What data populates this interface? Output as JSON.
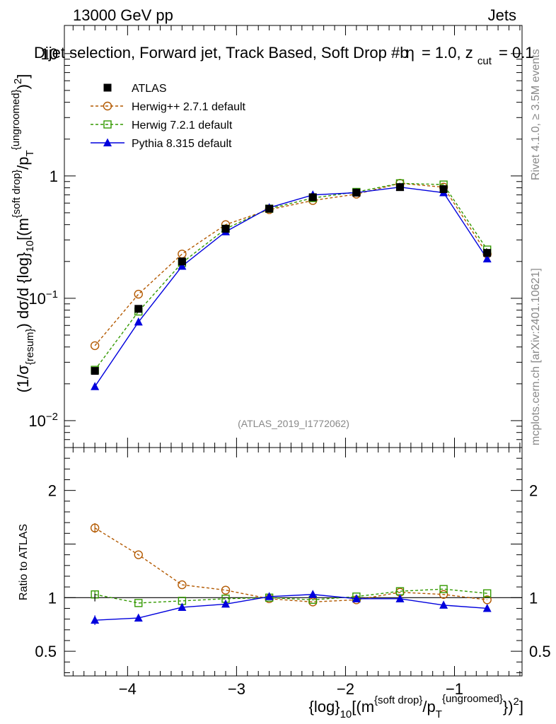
{
  "header": {
    "energy": "13000 GeV pp",
    "category": "Jets",
    "title": "Dijet selection, Forward jet, Track Based, Soft Drop #b",
    "title_params": "= 1.0, z",
    "title_params_sub": "cut",
    "title_params_tail": "= 0.1",
    "title_beta": "η"
  },
  "side_text": {
    "rivet": "Rivet 4.1.0, ≥ 3.5M events",
    "mcplots": "mcplots.cern.ch [arXiv:2401.10621]"
  },
  "watermark": "(ATLAS_2019_I1772062)",
  "axes": {
    "y_main_label": "(1/σ{resum}) dσ/d {log}10[(m{soft drop}/pT{ungroomed})2]",
    "y_main_parts": {
      "a": "(1/σ",
      "a_sub": "{resum}",
      "b": ") dσ/d {log}",
      "b_sub": "10",
      "c": "[(m",
      "c_sup": "{soft drop}",
      "d": "/p",
      "d_sub": "T",
      "d_sup": "{ungroomed}",
      "e": ")",
      "e_sup": "2",
      "f": "]"
    },
    "y_ratio_label": "Ratio to ATLAS",
    "x_label_parts": {
      "a": "{log}",
      "a_sub": "10",
      "b": "[(m",
      "b_sup": "{soft drop}",
      "c": "/p",
      "c_sub": "T",
      "c_sup": "{ungroomed}",
      "d": "})",
      "d_sup": "2",
      "e": "]"
    },
    "main_y_ticks": [
      {
        "value": 10,
        "label": "10"
      },
      {
        "value": 1,
        "label": "1"
      },
      {
        "value": 0.1,
        "label": "10",
        "exp": "−1"
      },
      {
        "value": 0.01,
        "label": "10",
        "exp": "−2"
      }
    ],
    "ratio_y_ticks": [
      {
        "value": 2,
        "label": "2"
      },
      {
        "value": 1,
        "label": "1"
      },
      {
        "value": 0.5,
        "label": "0.5"
      }
    ],
    "x_ticks": [
      {
        "value": -4,
        "label": "−4"
      },
      {
        "value": -3,
        "label": "−3"
      },
      {
        "value": -2,
        "label": "−2"
      },
      {
        "value": -1,
        "label": "−1"
      }
    ],
    "xlim": [
      -4.58,
      -0.38
    ],
    "main_ylim_log10": [
      -2.22,
      1.23
    ],
    "ratio_ylim": [
      0.27,
      2.4
    ]
  },
  "legend": [
    {
      "name": "ATLAS",
      "color": "#000000",
      "marker": "square-filled",
      "line": "none"
    },
    {
      "name": "Herwig++ 2.7.1 default",
      "color": "#b35900",
      "marker": "circle-open",
      "line": "dashed"
    },
    {
      "name": "Herwig 7.2.1 default",
      "color": "#339900",
      "marker": "square-open",
      "line": "dashed"
    },
    {
      "name": "Pythia 8.315 default",
      "color": "#0000dd",
      "marker": "triangle-filled",
      "line": "solid"
    }
  ],
  "chart_data": {
    "type": "line",
    "title": "Dijet selection, Forward jet, Track Based, Soft Drop",
    "xlabel": "{log}10[(m{soft drop}/pT{ungroomed})2]",
    "ylabel": "(1/σ{resum}) dσ/d {log}10[(m{soft drop}/pT{ungroomed})2]",
    "yscale": "log",
    "x": [
      -4.3,
      -3.9,
      -3.5,
      -3.1,
      -2.7,
      -2.3,
      -1.9,
      -1.5,
      -1.1,
      -0.7
    ],
    "series": [
      {
        "name": "ATLAS",
        "values": [
          0.0255,
          0.082,
          0.2,
          0.37,
          0.54,
          0.67,
          0.73,
          0.81,
          0.78,
          0.235
        ],
        "ratio": [
          1,
          1,
          1,
          1,
          1,
          1,
          1,
          1,
          1,
          1
        ],
        "ratio_err": [
          0.035,
          0,
          0,
          0,
          0,
          0,
          0,
          0,
          0,
          0
        ]
      },
      {
        "name": "Herwig++ 2.7.1 default",
        "values": [
          0.041,
          0.108,
          0.23,
          0.4,
          0.53,
          0.63,
          0.71,
          0.87,
          0.81,
          0.23
        ],
        "ratio": [
          1.65,
          1.4,
          1.12,
          1.07,
          0.99,
          0.96,
          0.98,
          1.05,
          1.03,
          0.98
        ],
        "ratio_err": [
          0.045,
          0,
          0,
          0,
          0,
          0,
          0,
          0,
          0,
          0
        ]
      },
      {
        "name": "Herwig 7.2.1 default",
        "values": [
          0.026,
          0.078,
          0.195,
          0.37,
          0.54,
          0.66,
          0.74,
          0.87,
          0.85,
          0.25
        ],
        "ratio": [
          1.03,
          0.95,
          0.97,
          0.99,
          1.0,
          0.98,
          1.01,
          1.06,
          1.08,
          1.04
        ],
        "ratio_err": [
          0.035,
          0,
          0,
          0,
          0,
          0,
          0,
          0,
          0,
          0
        ]
      },
      {
        "name": "Pythia 8.315 default",
        "values": [
          0.019,
          0.064,
          0.183,
          0.35,
          0.55,
          0.7,
          0.73,
          0.81,
          0.73,
          0.21
        ],
        "ratio": [
          0.79,
          0.81,
          0.91,
          0.94,
          1.01,
          1.03,
          0.99,
          0.99,
          0.93,
          0.9
        ],
        "ratio_err": [
          0.045,
          0.015,
          0,
          0,
          0,
          0,
          0,
          0,
          0,
          0
        ]
      }
    ]
  }
}
